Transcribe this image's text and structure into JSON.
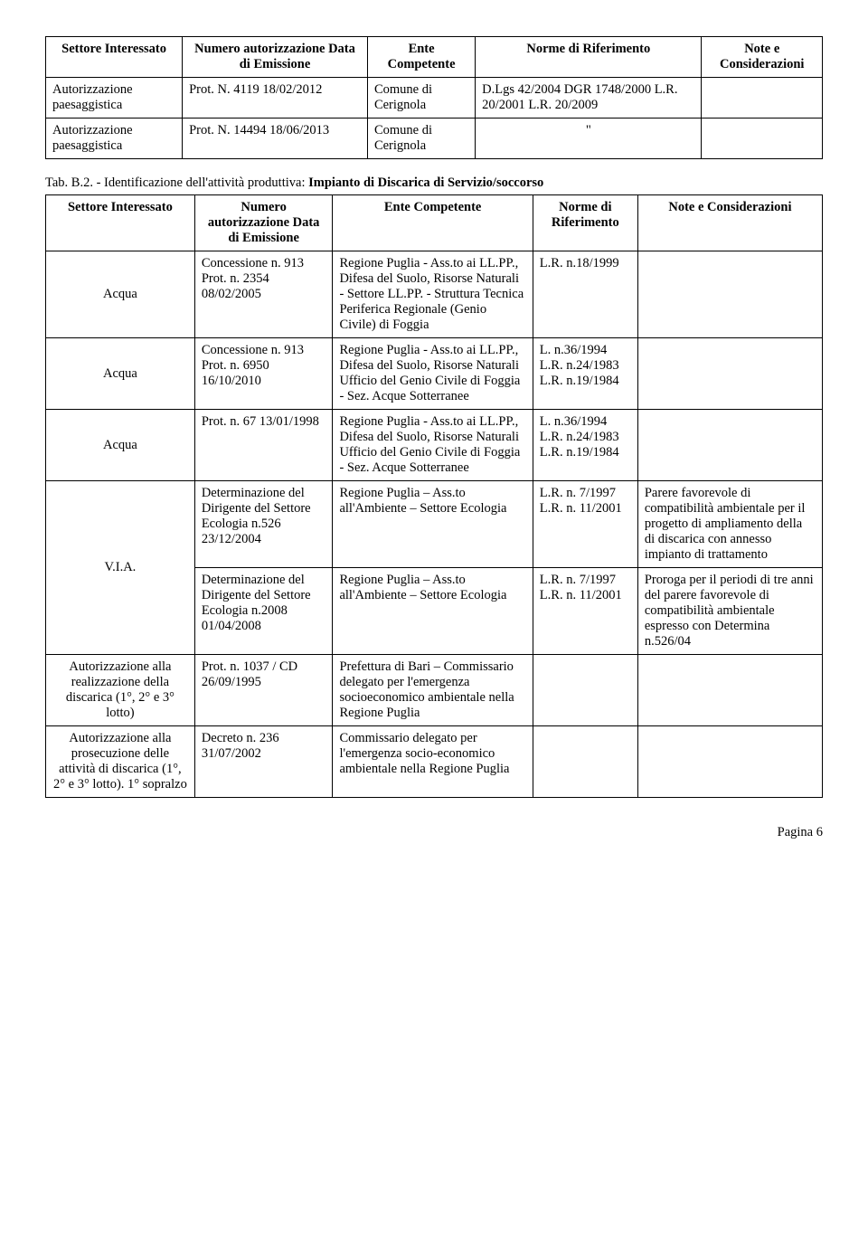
{
  "table1": {
    "headers": [
      "Settore Interessato",
      "Numero autorizzazione Data di Emissione",
      "Ente Competente",
      "Norme di Riferimento",
      "Note e Considerazioni"
    ],
    "rows": [
      {
        "c0": "Autorizzazione paesaggistica",
        "c1": "Prot. N. 4119 18/02/2012",
        "c2": "Comune di Cerignola",
        "c3": "D.Lgs 42/2004 DGR 1748/2000 L.R. 20/2001 L.R. 20/2009",
        "c4": ""
      },
      {
        "c0": "Autorizzazione paesaggistica",
        "c1": "Prot. N. 14494 18/06/2013",
        "c2": "Comune di Cerignola",
        "c3": "\"",
        "c4": ""
      }
    ]
  },
  "caption2": {
    "prefix": "Tab. B.2. - ",
    "text": "Identificazione dell'attività produttiva: ",
    "bold": "Impianto di Discarica di Servizio/soccorso"
  },
  "table2": {
    "headers": [
      "Settore Interessato",
      "Numero autorizzazione Data di Emissione",
      "Ente Competente",
      "Norme di Riferimento",
      "Note e Considerazioni"
    ],
    "rows": [
      {
        "c0": "Acqua",
        "c1": "Concessione n. 913 Prot. n. 2354 08/02/2005",
        "c2": "Regione Puglia - Ass.to ai LL.PP., Difesa del Suolo, Risorse Naturali - Settore LL.PP. - Struttura Tecnica Periferica Regionale (Genio Civile) di Foggia",
        "c3": "L.R. n.18/1999",
        "c4": ""
      },
      {
        "c0": "Acqua",
        "c1": "Concessione n. 913 Prot. n. 6950 16/10/2010",
        "c2": "Regione Puglia - Ass.to ai LL.PP., Difesa del Suolo, Risorse Naturali Ufficio del Genio Civile di Foggia - Sez. Acque Sotterranee",
        "c3": "L. n.36/1994 L.R. n.24/1983 L.R. n.19/1984",
        "c4": ""
      },
      {
        "c0": "Acqua",
        "c1": "Prot. n. 67 13/01/1998",
        "c2": "Regione Puglia - Ass.to ai LL.PP., Difesa del Suolo, Risorse Naturali Ufficio del Genio Civile di Foggia - Sez. Acque Sotterranee",
        "c3": "L. n.36/1994 L.R. n.24/1983 L.R. n.19/1984",
        "c4": ""
      },
      {
        "via": true,
        "c0": "V.I.A.",
        "c1a": "Determinazione del Dirigente del Settore Ecologia n.526 23/12/2004",
        "c2a": "Regione Puglia – Ass.to all'Ambiente – Settore Ecologia",
        "c3a": "L.R. n. 7/1997 L.R. n. 11/2001",
        "c4a": "Parere favorevole di compatibilità ambientale per il progetto di ampliamento della di discarica con annesso impianto di trattamento",
        "c1b": "Determinazione del Dirigente del Settore Ecologia n.2008 01/04/2008",
        "c2b": "Regione Puglia – Ass.to all'Ambiente – Settore Ecologia",
        "c3b": "L.R. n. 7/1997 L.R. n. 11/2001",
        "c4b": "Proroga per il periodi di tre anni del parere favorevole di compatibilità ambientale espresso con Determina n.526/04"
      },
      {
        "c0": "Autorizzazione alla realizzazione della discarica (1°, 2° e 3° lotto)",
        "c1": "Prot. n. 1037 / CD 26/09/1995",
        "c2": "Prefettura di Bari – Commissario delegato per l'emergenza socioeconomico ambientale nella Regione Puglia",
        "c3": "",
        "c4": ""
      },
      {
        "c0": "Autorizzazione alla prosecuzione delle attività di discarica (1°, 2° e 3° lotto). 1° sopralzo",
        "c1": "Decreto n. 236 31/07/2002",
        "c2": "Commissario delegato per l'emergenza socio-economico ambientale nella Regione Puglia",
        "c3": "",
        "c4": ""
      }
    ]
  },
  "footer": "Pagina  6"
}
